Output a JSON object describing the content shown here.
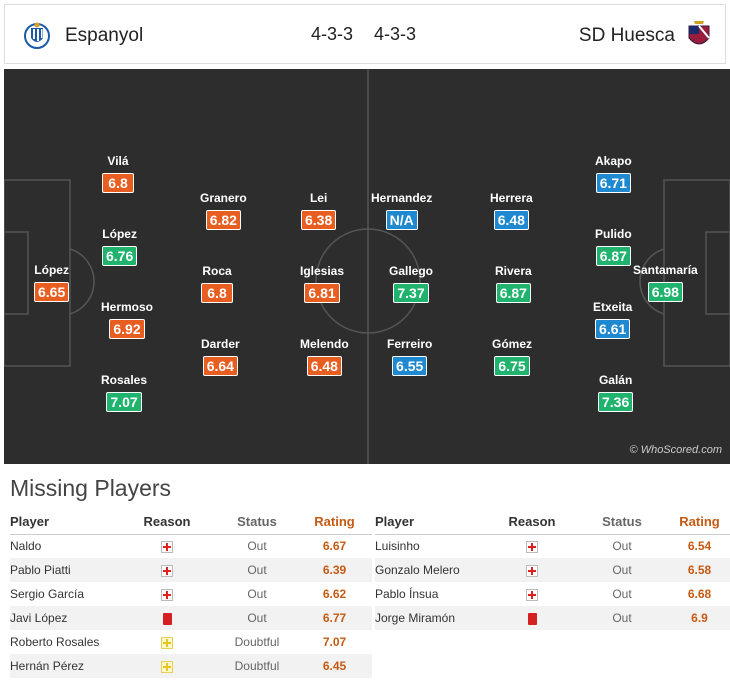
{
  "header": {
    "home_team": "Espanyol",
    "away_team": "SD Huesca",
    "home_formation": "4-3-3",
    "away_formation": "4-3-3"
  },
  "pitch": {
    "watermark": "© WhoScored.com",
    "colors": {
      "orange": "#e85d20",
      "green": "#1fb36e",
      "blue": "#1e88d0"
    },
    "players": [
      {
        "name": "López",
        "rating": "6.65",
        "color": "orange"
      },
      {
        "name": "Vilá",
        "rating": "6.8",
        "color": "orange"
      },
      {
        "name": "López",
        "rating": "6.76",
        "color": "green"
      },
      {
        "name": "Hermoso",
        "rating": "6.92",
        "color": "orange"
      },
      {
        "name": "Rosales",
        "rating": "7.07",
        "color": "green"
      },
      {
        "name": "Granero",
        "rating": "6.82",
        "color": "orange"
      },
      {
        "name": "Roca",
        "rating": "6.8",
        "color": "orange"
      },
      {
        "name": "Darder",
        "rating": "6.64",
        "color": "orange"
      },
      {
        "name": "Lei",
        "rating": "6.38",
        "color": "orange"
      },
      {
        "name": "Iglesias",
        "rating": "6.81",
        "color": "orange"
      },
      {
        "name": "Melendo",
        "rating": "6.48",
        "color": "orange"
      },
      {
        "name": "Hernandez",
        "rating": "N/A",
        "color": "blue"
      },
      {
        "name": "Gallego",
        "rating": "7.37",
        "color": "green"
      },
      {
        "name": "Ferreiro",
        "rating": "6.55",
        "color": "blue"
      },
      {
        "name": "Herrera",
        "rating": "6.48",
        "color": "blue"
      },
      {
        "name": "Rivera",
        "rating": "6.87",
        "color": "green"
      },
      {
        "name": "Gómez",
        "rating": "6.75",
        "color": "green"
      },
      {
        "name": "Akapo",
        "rating": "6.71",
        "color": "blue"
      },
      {
        "name": "Pulido",
        "rating": "6.87",
        "color": "green"
      },
      {
        "name": "Etxeita",
        "rating": "6.61",
        "color": "blue"
      },
      {
        "name": "Galán",
        "rating": "7.36",
        "color": "green"
      },
      {
        "name": "Santamaría",
        "rating": "6.98",
        "color": "green"
      }
    ]
  },
  "missing": {
    "title": "Missing Players",
    "headers": {
      "player": "Player",
      "reason": "Reason",
      "status": "Status",
      "rating": "Rating"
    },
    "home": [
      {
        "player": "Naldo",
        "reason": "injury",
        "status": "Out",
        "rating": "6.67"
      },
      {
        "player": "Pablo Piatti",
        "reason": "injury",
        "status": "Out",
        "rating": "6.39"
      },
      {
        "player": "Sergio García",
        "reason": "injury",
        "status": "Out",
        "rating": "6.62"
      },
      {
        "player": "Javi López",
        "reason": "redcard",
        "status": "Out",
        "rating": "6.77"
      },
      {
        "player": "Roberto Rosales",
        "reason": "doubtful",
        "status": "Doubtful",
        "rating": "7.07"
      },
      {
        "player": "Hernán Pérez",
        "reason": "doubtful",
        "status": "Doubtful",
        "rating": "6.45"
      }
    ],
    "away": [
      {
        "player": "Luisinho",
        "reason": "injury",
        "status": "Out",
        "rating": "6.54"
      },
      {
        "player": "Gonzalo Melero",
        "reason": "injury",
        "status": "Out",
        "rating": "6.58"
      },
      {
        "player": "Pablo Ínsua",
        "reason": "injury",
        "status": "Out",
        "rating": "6.68"
      },
      {
        "player": "Jorge Miramón",
        "reason": "redcard",
        "status": "Out",
        "rating": "6.9"
      }
    ]
  }
}
